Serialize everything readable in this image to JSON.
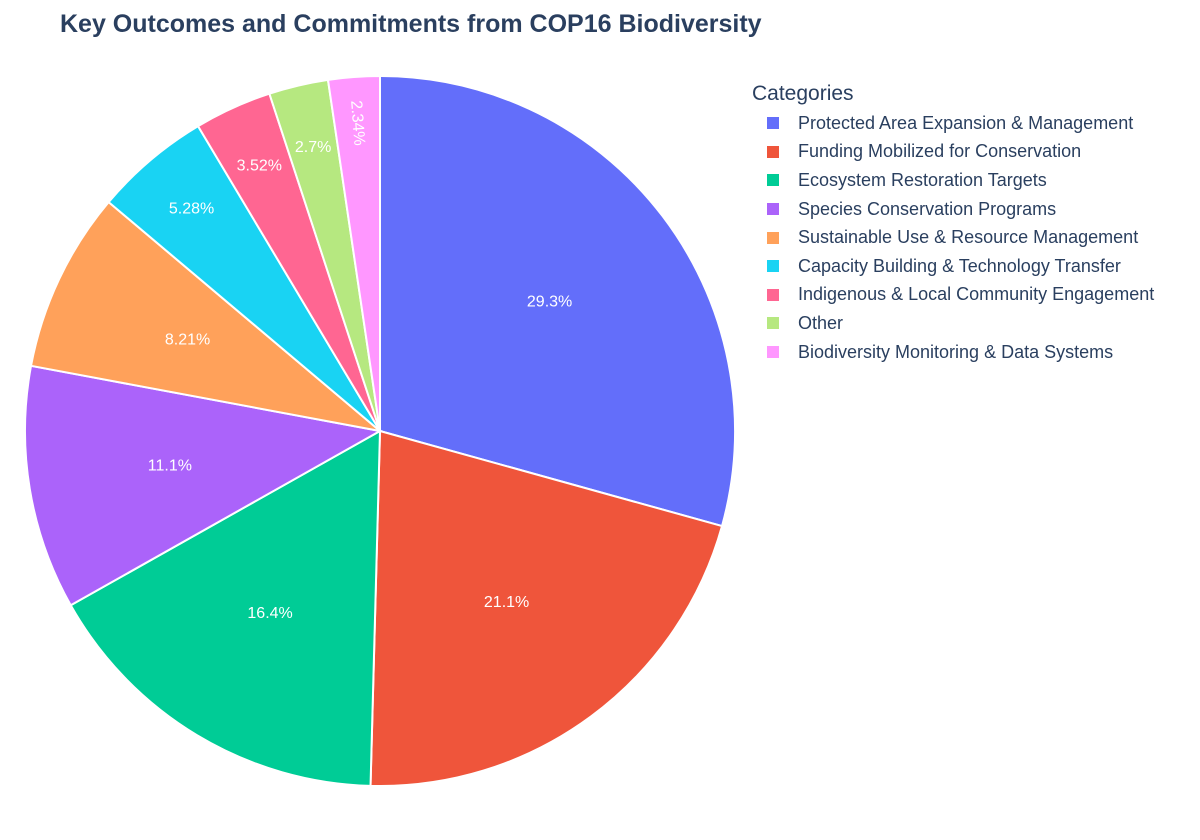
{
  "title": "Key Outcomes and Commitments from COP16 Biodiversity",
  "legend": {
    "title": "Categories",
    "placement": "right"
  },
  "chart_data": {
    "type": "pie",
    "title": "Key Outcomes and Commitments from COP16 Biodiversity",
    "sort": "descending",
    "direction": "clockwise",
    "start": "12 o'clock",
    "slices": [
      {
        "label": "Protected Area Expansion & Management",
        "value": 29.3,
        "text": "29.3%",
        "color": "#636efa"
      },
      {
        "label": "Funding Mobilized for Conservation",
        "value": 21.1,
        "text": "21.1%",
        "color": "#ef553b"
      },
      {
        "label": "Ecosystem Restoration Targets",
        "value": 16.4,
        "text": "16.4%",
        "color": "#00cc96"
      },
      {
        "label": "Species Conservation Programs",
        "value": 11.1,
        "text": "11.1%",
        "color": "#ab63fa"
      },
      {
        "label": "Sustainable Use & Resource Management",
        "value": 8.21,
        "text": "8.21%",
        "color": "#ffa15a"
      },
      {
        "label": "Capacity Building & Technology Transfer",
        "value": 5.28,
        "text": "5.28%",
        "color": "#19d3f3"
      },
      {
        "label": "Indigenous & Local Community Engagement",
        "value": 3.52,
        "text": "3.52%",
        "color": "#ff6692"
      },
      {
        "label": "Other",
        "value": 2.7,
        "text": "2.7%",
        "color": "#b6e880"
      },
      {
        "label": "Biodiversity Monitoring & Data Systems",
        "value": 2.34,
        "text": "2.34%",
        "color": "#ff97ff"
      }
    ]
  }
}
